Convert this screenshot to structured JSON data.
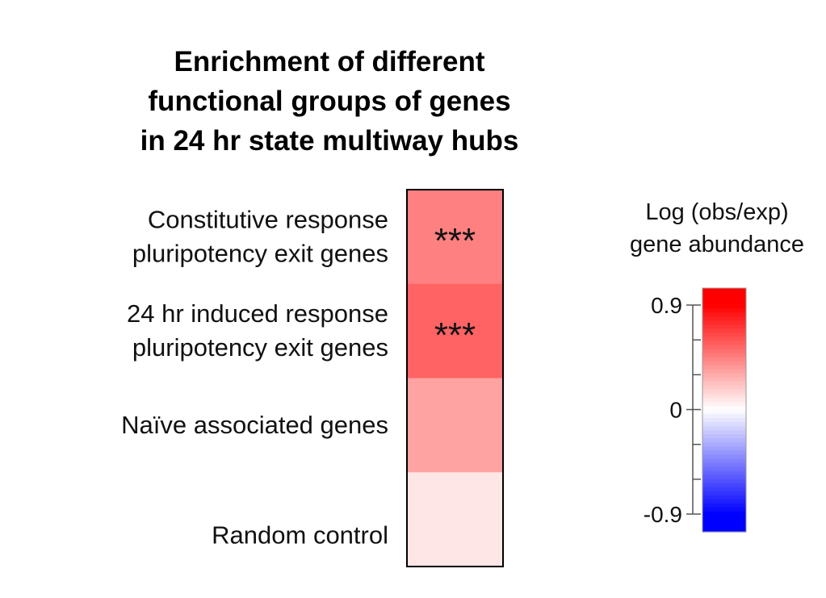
{
  "chart_data": {
    "type": "heatmap",
    "title_lines": [
      "Enrichment of different",
      "functional groups of genes",
      "in 24 hr state multiway hubs"
    ],
    "rows": [
      {
        "label_lines": [
          "Constitutive response",
          "pluripotency exit genes"
        ],
        "value": 0.45,
        "annotation": "***"
      },
      {
        "label_lines": [
          "24 hr induced response",
          "pluripotency exit genes"
        ],
        "value": 0.55,
        "annotation": "***"
      },
      {
        "label_lines": [
          "Naïve associated genes"
        ],
        "value": 0.33,
        "annotation": ""
      },
      {
        "label_lines": [
          "Random control"
        ],
        "value": 0.09,
        "annotation": ""
      }
    ],
    "legend": {
      "title_lines": [
        "Log (obs/exp)",
        "gene abundance"
      ],
      "range": [
        -0.9,
        0.9
      ],
      "ticks": [
        {
          "value": 0.9,
          "label": "0.9"
        },
        {
          "value": 0,
          "label": "0"
        },
        {
          "value": -0.9,
          "label": "-0.9"
        }
      ],
      "minor_ticks": [
        0.6,
        0.3,
        -0.3,
        -0.6
      ],
      "colors": {
        "low": "#0000ff",
        "mid": "#ffffff",
        "high": "#ff0000"
      }
    }
  }
}
